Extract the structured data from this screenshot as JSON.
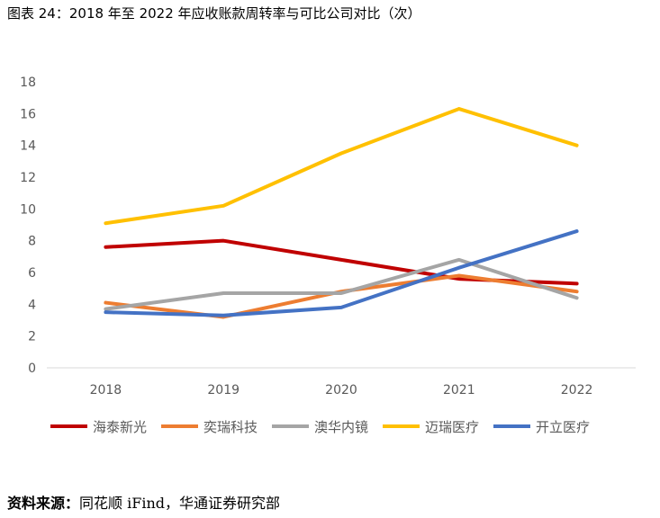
{
  "figure": {
    "title": "图表 24：2018 年至 2022 年应收账款周转率与可比公司对比（次）"
  },
  "source": {
    "label": "资料来源：",
    "text": "同花顺 iFind，华通证券研究部"
  },
  "chart_data": {
    "type": "line",
    "categories": [
      "2018",
      "2019",
      "2020",
      "2021",
      "2022"
    ],
    "ylim": [
      0,
      18
    ],
    "yticks": [
      0,
      2,
      4,
      6,
      8,
      10,
      12,
      14,
      16,
      18
    ],
    "grid": false,
    "legend_position": "bottom",
    "series": [
      {
        "name": "海泰新光",
        "color": "#C00000",
        "values": [
          7.6,
          8.0,
          6.8,
          5.6,
          5.3
        ]
      },
      {
        "name": "奕瑞科技",
        "color": "#ED7D31",
        "values": [
          4.1,
          3.2,
          4.8,
          5.8,
          4.8
        ]
      },
      {
        "name": "澳华内镜",
        "color": "#A5A5A5",
        "values": [
          3.7,
          4.7,
          4.7,
          6.8,
          4.4
        ]
      },
      {
        "name": "迈瑞医疗",
        "color": "#FFC000",
        "values": [
          9.1,
          10.2,
          13.5,
          16.3,
          14.0
        ]
      },
      {
        "name": "开立医疗",
        "color": "#4472C4",
        "values": [
          3.5,
          3.3,
          3.8,
          6.3,
          8.6
        ]
      }
    ]
  }
}
